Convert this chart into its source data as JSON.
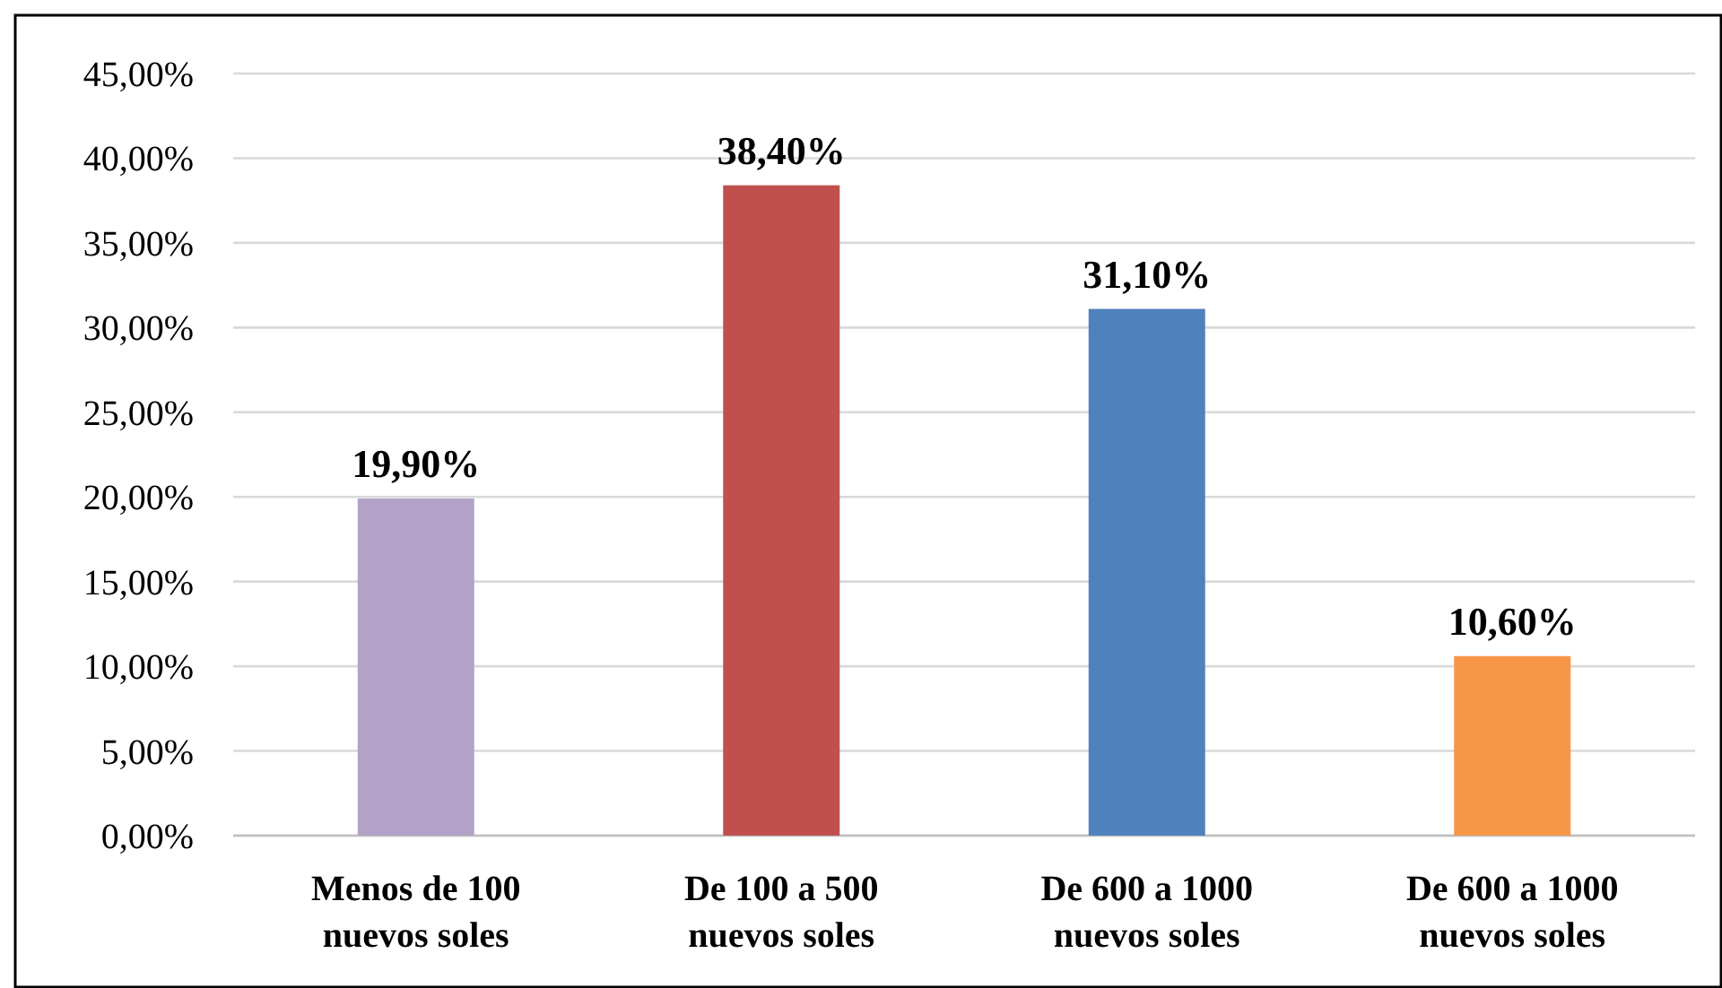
{
  "chart_data": {
    "type": "bar",
    "categories": [
      "Menos de 100 nuevos soles",
      "De 100 a 500 nuevos soles",
      "De 600 a 1000 nuevos soles",
      "De 600 a 1000 nuevos soles"
    ],
    "values": [
      19.9,
      38.4,
      31.1,
      10.6
    ],
    "colors": [
      "#b3a2c7",
      "#c0504d",
      "#4f81bd",
      "#f79646"
    ],
    "value_labels": [
      "19,90%",
      "38,40%",
      "31,10%",
      "10,60%"
    ],
    "ylim": [
      0,
      45
    ],
    "yticks": [
      {
        "value": 0,
        "label": "0,00%"
      },
      {
        "value": 5,
        "label": "5,00%"
      },
      {
        "value": 10,
        "label": "10,00%"
      },
      {
        "value": 15,
        "label": "15,00%"
      },
      {
        "value": 20,
        "label": "20,00%"
      },
      {
        "value": 25,
        "label": "25,00%"
      },
      {
        "value": 30,
        "label": "30,00%"
      },
      {
        "value": 35,
        "label": "35,00%"
      },
      {
        "value": 40,
        "label": "40,00%"
      },
      {
        "value": 45,
        "label": "45,00%"
      }
    ],
    "grid": "y"
  }
}
